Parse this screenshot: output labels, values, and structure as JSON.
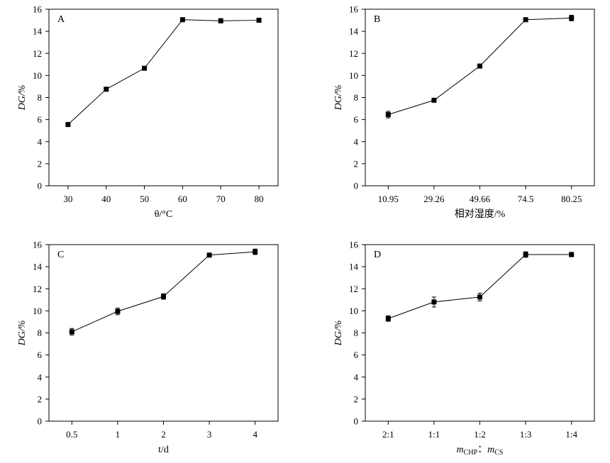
{
  "chart_data": [
    {
      "type": "line",
      "panel_label": "A",
      "xlabel": "θ/°C",
      "ylabel": "DG/%",
      "categories": [
        "30",
        "40",
        "50",
        "60",
        "70",
        "80"
      ],
      "values": [
        5.55,
        8.75,
        10.65,
        15.05,
        14.95,
        15.0
      ],
      "errors": [
        0.1,
        0.1,
        0.1,
        0.1,
        0.2,
        0.15
      ],
      "ylim": [
        0,
        16
      ],
      "yticks": [
        "0",
        "2",
        "4",
        "6",
        "8",
        "10",
        "12",
        "14",
        "16"
      ],
      "grid": false
    },
    {
      "type": "line",
      "panel_label": "B",
      "xlabel": "相对湿度/%",
      "ylabel": "DG/%",
      "categories": [
        "10.95",
        "29.26",
        "49.66",
        "74.5",
        "80.25"
      ],
      "values": [
        6.45,
        7.75,
        10.85,
        15.05,
        15.2
      ],
      "errors": [
        0.3,
        0.15,
        0.15,
        0.1,
        0.25
      ],
      "ylim": [
        0,
        16
      ],
      "yticks": [
        "0",
        "2",
        "4",
        "6",
        "8",
        "10",
        "12",
        "14",
        "16"
      ],
      "grid": false
    },
    {
      "type": "line",
      "panel_label": "C",
      "xlabel": "t/d",
      "ylabel": "DG/%",
      "categories": [
        "0.5",
        "1",
        "2",
        "3",
        "4"
      ],
      "values": [
        8.1,
        9.95,
        11.3,
        15.05,
        15.35
      ],
      "errors": [
        0.3,
        0.3,
        0.25,
        0.1,
        0.25
      ],
      "ylim": [
        0,
        16
      ],
      "yticks": [
        "0",
        "2",
        "4",
        "6",
        "8",
        "10",
        "12",
        "14",
        "16"
      ],
      "grid": false
    },
    {
      "type": "line",
      "panel_label": "D",
      "xlabel_main": "m",
      "xlabel_sub1": "CHP",
      "xlabel_sep": "：",
      "xlabel_main2": "m",
      "xlabel_sub2": "CS",
      "ylabel": "DG/%",
      "categories": [
        "2:1",
        "1:1",
        "1:2",
        "1:3",
        "1:4"
      ],
      "values": [
        9.3,
        10.8,
        11.25,
        15.1,
        15.1
      ],
      "errors": [
        0.25,
        0.45,
        0.35,
        0.25,
        0.2
      ],
      "ylim": [
        0,
        16
      ],
      "yticks": [
        "0",
        "2",
        "4",
        "6",
        "8",
        "10",
        "12",
        "14",
        "16"
      ],
      "grid": false
    }
  ]
}
